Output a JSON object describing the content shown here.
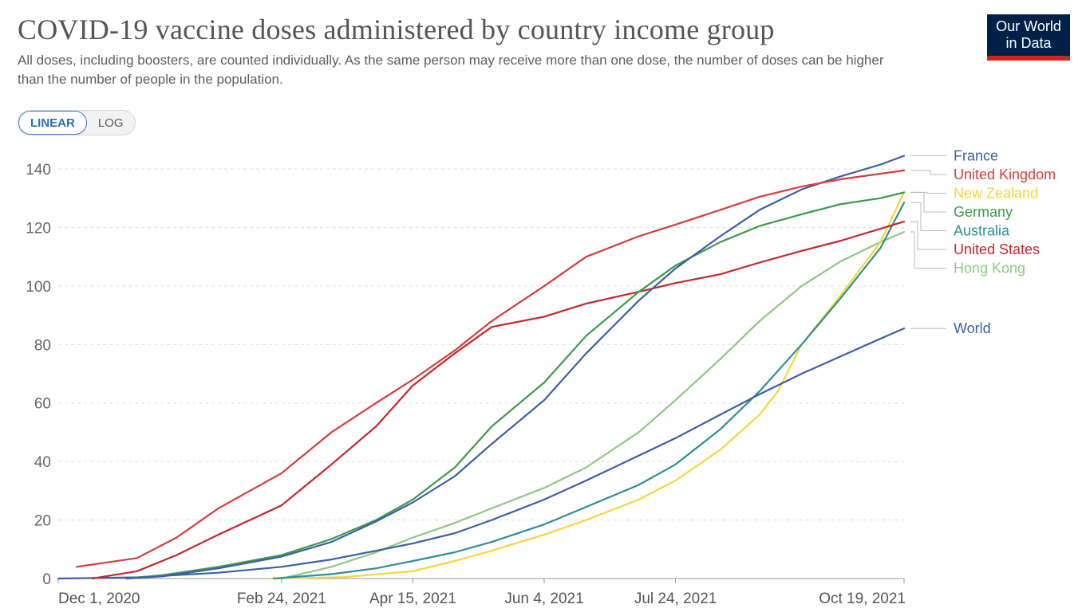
{
  "header": {
    "title": "COVID-19 vaccine doses administered by country income group",
    "subtitle": "All doses, including boosters, are counted individually. As the same person may receive more than one dose, the number of doses can be higher than the number of people in the population."
  },
  "logo": {
    "line1": "Our World",
    "line2": "in Data",
    "bg_color": "#002147",
    "accent_color": "#ce261e"
  },
  "controls": {
    "linear_label": "LINEAR",
    "log_label": "LOG",
    "selected": "LINEAR"
  },
  "chart_data": {
    "type": "line",
    "x_axis_type": "date",
    "xlim": [
      "2020-12-01",
      "2021-10-19"
    ],
    "ylim": [
      0,
      140
    ],
    "y_ticks": [
      0,
      20,
      40,
      60,
      80,
      100,
      120,
      140
    ],
    "x_ticks": [
      {
        "date": "2020-12-01",
        "label": "Dec 1, 2020"
      },
      {
        "date": "2021-02-24",
        "label": "Feb 24, 2021"
      },
      {
        "date": "2021-04-15",
        "label": "Apr 15, 2021"
      },
      {
        "date": "2021-06-04",
        "label": "Jun 4, 2021"
      },
      {
        "date": "2021-07-24",
        "label": "Jul 24, 2021"
      },
      {
        "date": "2021-10-19",
        "label": "Oct 19, 2021"
      }
    ],
    "grid": "horizontal-dashed",
    "legend_placement": "right",
    "series": [
      {
        "name": "France",
        "color": "#3c5fa8",
        "points": [
          [
            "2020-12-27",
            0
          ],
          [
            "2021-01-10",
            0.8
          ],
          [
            "2021-01-31",
            3.5
          ],
          [
            "2021-02-24",
            7.5
          ],
          [
            "2021-03-15",
            12.5
          ],
          [
            "2021-04-01",
            19.5
          ],
          [
            "2021-04-15",
            26
          ],
          [
            "2021-05-01",
            35
          ],
          [
            "2021-05-15",
            46
          ],
          [
            "2021-06-04",
            61
          ],
          [
            "2021-06-20",
            77
          ],
          [
            "2021-07-10",
            95
          ],
          [
            "2021-07-24",
            106
          ],
          [
            "2021-08-10",
            117
          ],
          [
            "2021-08-25",
            126
          ],
          [
            "2021-09-10",
            133
          ],
          [
            "2021-09-25",
            137.5
          ],
          [
            "2021-10-10",
            141.5
          ],
          [
            "2021-10-19",
            144.5
          ]
        ]
      },
      {
        "name": "United Kingdom",
        "color": "#d73c3c",
        "points": [
          [
            "2020-12-08",
            4
          ],
          [
            "2020-12-31",
            7
          ],
          [
            "2021-01-15",
            14
          ],
          [
            "2021-01-31",
            24
          ],
          [
            "2021-02-24",
            36
          ],
          [
            "2021-03-15",
            50
          ],
          [
            "2021-04-01",
            60
          ],
          [
            "2021-04-15",
            68
          ],
          [
            "2021-05-01",
            78
          ],
          [
            "2021-05-15",
            88
          ],
          [
            "2021-06-04",
            100
          ],
          [
            "2021-06-20",
            110
          ],
          [
            "2021-07-10",
            117
          ],
          [
            "2021-07-24",
            121
          ],
          [
            "2021-08-10",
            126
          ],
          [
            "2021-08-25",
            130.5
          ],
          [
            "2021-09-10",
            134
          ],
          [
            "2021-09-25",
            136.5
          ],
          [
            "2021-10-19",
            139.5
          ]
        ]
      },
      {
        "name": "New Zealand",
        "color": "#f5d63d",
        "points": [
          [
            "2021-02-20",
            0
          ],
          [
            "2021-03-20",
            0.5
          ],
          [
            "2021-04-15",
            2.5
          ],
          [
            "2021-05-01",
            6
          ],
          [
            "2021-05-15",
            9.5
          ],
          [
            "2021-06-04",
            15
          ],
          [
            "2021-06-20",
            20
          ],
          [
            "2021-07-10",
            27
          ],
          [
            "2021-07-24",
            33.5
          ],
          [
            "2021-08-10",
            44
          ],
          [
            "2021-08-25",
            56
          ],
          [
            "2021-09-01",
            64
          ],
          [
            "2021-09-10",
            80
          ],
          [
            "2021-09-25",
            97
          ],
          [
            "2021-10-10",
            115
          ],
          [
            "2021-10-19",
            132
          ]
        ]
      },
      {
        "name": "Germany",
        "color": "#3c9b48",
        "points": [
          [
            "2020-12-27",
            0
          ],
          [
            "2021-01-10",
            1.2
          ],
          [
            "2021-01-31",
            4
          ],
          [
            "2021-02-24",
            8
          ],
          [
            "2021-03-15",
            13.5
          ],
          [
            "2021-04-01",
            20
          ],
          [
            "2021-04-15",
            27
          ],
          [
            "2021-05-01",
            38
          ],
          [
            "2021-05-15",
            52
          ],
          [
            "2021-06-04",
            67
          ],
          [
            "2021-06-20",
            83
          ],
          [
            "2021-07-10",
            98
          ],
          [
            "2021-07-24",
            107
          ],
          [
            "2021-08-10",
            115
          ],
          [
            "2021-08-25",
            120.5
          ],
          [
            "2021-09-10",
            124.5
          ],
          [
            "2021-09-25",
            128
          ],
          [
            "2021-10-10",
            130
          ],
          [
            "2021-10-19",
            132
          ]
        ]
      },
      {
        "name": "Australia",
        "color": "#2e8f96",
        "points": [
          [
            "2021-02-21",
            0
          ],
          [
            "2021-03-15",
            1.5
          ],
          [
            "2021-04-01",
            3.5
          ],
          [
            "2021-04-15",
            6
          ],
          [
            "2021-05-01",
            9
          ],
          [
            "2021-05-15",
            12.5
          ],
          [
            "2021-06-04",
            18.5
          ],
          [
            "2021-06-20",
            24.5
          ],
          [
            "2021-07-10",
            32
          ],
          [
            "2021-07-24",
            39
          ],
          [
            "2021-08-10",
            51
          ],
          [
            "2021-08-25",
            64
          ],
          [
            "2021-09-10",
            80
          ],
          [
            "2021-09-25",
            96
          ],
          [
            "2021-10-10",
            113
          ],
          [
            "2021-10-19",
            128.5
          ]
        ]
      },
      {
        "name": "United States",
        "color": "#c4272c",
        "points": [
          [
            "2020-12-14",
            0
          ],
          [
            "2020-12-31",
            2.5
          ],
          [
            "2021-01-15",
            8
          ],
          [
            "2021-01-31",
            15
          ],
          [
            "2021-02-24",
            25
          ],
          [
            "2021-03-15",
            39
          ],
          [
            "2021-04-01",
            52
          ],
          [
            "2021-04-15",
            66
          ],
          [
            "2021-05-01",
            77
          ],
          [
            "2021-05-15",
            86
          ],
          [
            "2021-06-04",
            89.5
          ],
          [
            "2021-06-20",
            94
          ],
          [
            "2021-07-10",
            98
          ],
          [
            "2021-07-24",
            101
          ],
          [
            "2021-08-10",
            104
          ],
          [
            "2021-08-25",
            108
          ],
          [
            "2021-09-10",
            112
          ],
          [
            "2021-09-25",
            115.5
          ],
          [
            "2021-10-19",
            122
          ]
        ]
      },
      {
        "name": "Hong Kong",
        "color": "#8fc884",
        "points": [
          [
            "2021-02-24",
            0
          ],
          [
            "2021-03-15",
            4
          ],
          [
            "2021-04-01",
            9
          ],
          [
            "2021-04-15",
            14
          ],
          [
            "2021-05-01",
            19
          ],
          [
            "2021-05-15",
            24
          ],
          [
            "2021-06-04",
            31
          ],
          [
            "2021-06-20",
            38
          ],
          [
            "2021-07-10",
            50
          ],
          [
            "2021-07-24",
            61
          ],
          [
            "2021-08-10",
            75
          ],
          [
            "2021-08-25",
            88
          ],
          [
            "2021-09-10",
            100
          ],
          [
            "2021-09-25",
            108.5
          ],
          [
            "2021-10-10",
            115
          ],
          [
            "2021-10-19",
            118.5
          ]
        ]
      },
      {
        "name": "World",
        "color": "#3c5fa8",
        "points": [
          [
            "2020-12-01",
            0
          ],
          [
            "2020-12-31",
            0.4
          ],
          [
            "2021-01-31",
            2
          ],
          [
            "2021-02-24",
            4
          ],
          [
            "2021-03-15",
            6.5
          ],
          [
            "2021-04-01",
            9.5
          ],
          [
            "2021-04-15",
            12
          ],
          [
            "2021-05-01",
            15.5
          ],
          [
            "2021-05-15",
            20
          ],
          [
            "2021-06-04",
            27
          ],
          [
            "2021-06-20",
            33.5
          ],
          [
            "2021-07-10",
            42
          ],
          [
            "2021-07-24",
            48
          ],
          [
            "2021-08-10",
            56
          ],
          [
            "2021-08-25",
            63
          ],
          [
            "2021-09-10",
            70
          ],
          [
            "2021-09-25",
            76
          ],
          [
            "2021-10-10",
            82
          ],
          [
            "2021-10-19",
            85.5
          ]
        ]
      }
    ]
  }
}
